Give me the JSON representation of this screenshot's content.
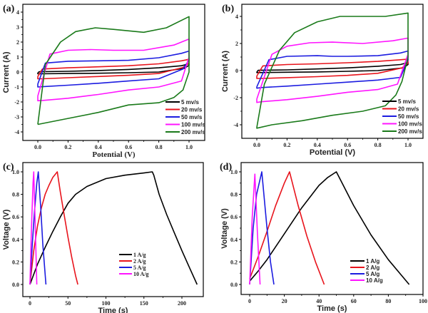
{
  "chart_data": [
    {
      "panel": "(a)",
      "type": "line",
      "title": "",
      "xlabel": "Potential (V)",
      "ylabel": "Current (A)",
      "xlim": [
        -0.1,
        1.1
      ],
      "ylim": [
        -4.6,
        4.3
      ],
      "xticks": [
        0.0,
        0.2,
        0.4,
        0.6,
        0.8,
        1.0
      ],
      "xtick_labels": [
        "0.0",
        "0.2",
        "0.4",
        "0.6",
        "0.8",
        "1.0"
      ],
      "yticks": [
        -4,
        -3,
        -2,
        -1,
        0,
        1,
        2,
        3,
        4
      ],
      "ytick_labels": [
        "-4",
        "-3",
        "-2",
        "-1",
        "0",
        "1",
        "2",
        "3",
        "4"
      ],
      "grid": false,
      "legend_position": "bottom-right",
      "series": [
        {
          "name": "5 mv/s",
          "color": "#000000",
          "x": [
            0.0,
            0.01,
            0.2,
            0.4,
            0.6,
            0.8,
            0.95,
            1.0,
            1.0,
            0.97,
            0.8,
            0.6,
            0.4,
            0.2,
            0.02,
            0.0,
            0.0
          ],
          "y": [
            -0.05,
            0.02,
            0.05,
            0.1,
            0.17,
            0.28,
            0.42,
            0.55,
            0.45,
            0.25,
            0.0,
            -0.05,
            -0.08,
            -0.1,
            -0.12,
            -0.12,
            -0.05
          ]
        },
        {
          "name": "20 mv/s",
          "color": "#e8141c",
          "x": [
            0.0,
            0.03,
            0.2,
            0.4,
            0.6,
            0.8,
            0.95,
            1.0,
            1.0,
            0.96,
            0.8,
            0.6,
            0.4,
            0.2,
            0.03,
            0.0,
            0.0
          ],
          "y": [
            -0.3,
            0.2,
            0.28,
            0.35,
            0.42,
            0.55,
            0.75,
            0.85,
            0.6,
            0.3,
            -0.1,
            -0.22,
            -0.3,
            -0.38,
            -0.45,
            -0.45,
            -0.3
          ]
        },
        {
          "name": "50 mv/s",
          "color": "#1c1ce0",
          "x": [
            0.0,
            0.05,
            0.2,
            0.4,
            0.6,
            0.8,
            0.95,
            1.0,
            1.0,
            0.96,
            0.8,
            0.6,
            0.4,
            0.2,
            0.03,
            0.0,
            0.0
          ],
          "y": [
            -0.8,
            0.6,
            0.72,
            0.75,
            0.78,
            0.95,
            1.25,
            1.4,
            0.8,
            0.2,
            -0.45,
            -0.6,
            -0.75,
            -0.88,
            -0.98,
            -1.0,
            -0.8
          ]
        },
        {
          "name": "100 mv/s",
          "color": "#ff14ff",
          "x": [
            0.0,
            0.08,
            0.2,
            0.35,
            0.5,
            0.7,
            0.9,
            1.0,
            1.0,
            0.95,
            0.8,
            0.6,
            0.4,
            0.2,
            0.03,
            0.0,
            0.0
          ],
          "y": [
            -1.6,
            1.2,
            1.45,
            1.5,
            1.45,
            1.45,
            1.8,
            2.2,
            1.0,
            -0.6,
            -1.0,
            -1.2,
            -1.5,
            -1.75,
            -1.9,
            -1.92,
            -1.6
          ]
        },
        {
          "name": "200 mv/s",
          "color": "#1a7a1a",
          "x": [
            0.0,
            0.05,
            0.15,
            0.25,
            0.38,
            0.5,
            0.7,
            0.85,
            1.0,
            1.0,
            0.96,
            0.9,
            0.8,
            0.6,
            0.4,
            0.2,
            0.0,
            0.0
          ],
          "y": [
            -3.5,
            0.5,
            2.0,
            2.7,
            2.95,
            2.85,
            2.65,
            2.95,
            3.7,
            0.0,
            -1.2,
            -1.7,
            -2.05,
            -2.2,
            -2.7,
            -3.1,
            -3.5,
            -3.5
          ]
        }
      ]
    },
    {
      "panel": "(b)",
      "type": "line",
      "title": "",
      "xlabel": "Potential (V)",
      "ylabel": "Current (A)",
      "xlim": [
        -0.1,
        1.1
      ],
      "ylim": [
        -5,
        5.2
      ],
      "xticks": [
        0.0,
        0.2,
        0.4,
        0.6,
        0.8,
        1.0
      ],
      "xtick_labels": [
        "0.0",
        "0.2",
        "0.4",
        "0.6",
        "0.8",
        "1.0"
      ],
      "yticks": [
        -4,
        -2,
        0,
        2,
        4
      ],
      "ytick_labels": [
        "-4",
        "-2",
        "0",
        "2",
        "4"
      ],
      "grid": false,
      "legend_position": "bottom-right",
      "series": [
        {
          "name": "5 mv/s",
          "color": "#000000",
          "x": [
            0.0,
            0.01,
            0.2,
            0.4,
            0.6,
            0.8,
            0.95,
            1.0,
            1.0,
            0.97,
            0.8,
            0.6,
            0.4,
            0.2,
            0.02,
            0.0,
            0.0
          ],
          "y": [
            -0.1,
            0.02,
            0.05,
            0.12,
            0.2,
            0.32,
            0.45,
            0.6,
            0.45,
            0.2,
            0.0,
            -0.05,
            -0.1,
            -0.12,
            -0.15,
            -0.15,
            -0.1
          ]
        },
        {
          "name": "20 mv/s",
          "color": "#e8141c",
          "x": [
            0.0,
            0.04,
            0.2,
            0.4,
            0.6,
            0.8,
            0.95,
            1.0,
            1.0,
            0.96,
            0.8,
            0.6,
            0.4,
            0.2,
            0.03,
            0.0,
            0.0
          ],
          "y": [
            -0.4,
            0.35,
            0.45,
            0.5,
            0.58,
            0.68,
            0.8,
            0.85,
            0.55,
            0.2,
            -0.2,
            -0.35,
            -0.45,
            -0.52,
            -0.58,
            -0.58,
            -0.4
          ]
        },
        {
          "name": "50 mv/s",
          "color": "#1c1ce0",
          "x": [
            0.0,
            0.08,
            0.2,
            0.4,
            0.5,
            0.6,
            0.8,
            0.95,
            1.0,
            1.0,
            0.95,
            0.8,
            0.6,
            0.4,
            0.2,
            0.03,
            0.0,
            0.0
          ],
          "y": [
            -1.2,
            0.8,
            1.05,
            1.1,
            1.05,
            1.05,
            1.1,
            1.3,
            1.45,
            0.8,
            -0.5,
            -0.7,
            -0.85,
            -1.0,
            -1.15,
            -1.25,
            -1.3,
            -1.2
          ]
        },
        {
          "name": "100 mv/s",
          "color": "#ff14ff",
          "x": [
            0.0,
            0.1,
            0.2,
            0.35,
            0.5,
            0.7,
            0.9,
            1.0,
            1.0,
            0.93,
            0.8,
            0.6,
            0.4,
            0.2,
            0.03,
            0.0,
            0.0
          ],
          "y": [
            -2.1,
            1.2,
            1.8,
            2.05,
            2.1,
            2.0,
            2.2,
            2.4,
            1.2,
            -1.0,
            -1.4,
            -1.6,
            -1.9,
            -2.15,
            -2.3,
            -2.35,
            -2.1
          ]
        },
        {
          "name": "200 mv/s",
          "color": "#1a7a1a",
          "x": [
            0.0,
            0.05,
            0.15,
            0.25,
            0.4,
            0.55,
            0.7,
            0.85,
            1.0,
            1.0,
            0.96,
            0.92,
            0.85,
            0.7,
            0.5,
            0.3,
            0.1,
            0.0,
            0.0
          ],
          "y": [
            -4.2,
            -1.0,
            1.5,
            2.8,
            3.6,
            4.0,
            4.0,
            4.0,
            4.25,
            1.0,
            -0.8,
            -1.8,
            -2.6,
            -3.0,
            -3.3,
            -3.7,
            -4.0,
            -4.25,
            -4.2
          ]
        }
      ]
    },
    {
      "panel": "(c)",
      "type": "line",
      "title": "",
      "xlabel": "Time (s)",
      "ylabel": "Voltage (V)",
      "xlim": [
        -10,
        228
      ],
      "ylim": [
        -0.1,
        1.08
      ],
      "xticks": [
        0,
        50,
        100,
        150,
        200
      ],
      "xtick_labels": [
        "0",
        "50",
        "100",
        "150",
        "200"
      ],
      "yticks": [
        0.0,
        0.2,
        0.4,
        0.6,
        0.8,
        1.0
      ],
      "ytick_labels": [
        "0.0",
        "0.2",
        "0.4",
        "0.6",
        "0.8",
        "1.0"
      ],
      "grid": false,
      "legend_position": "center-right",
      "series": [
        {
          "name": "1 A/g",
          "color": "#000000",
          "x": [
            0,
            10,
            20,
            30,
            40,
            50,
            60,
            75,
            100,
            125,
            150,
            161,
            163,
            170,
            180,
            190,
            200,
            210,
            220
          ],
          "y": [
            0.0,
            0.18,
            0.33,
            0.47,
            0.6,
            0.72,
            0.8,
            0.87,
            0.94,
            0.97,
            0.99,
            1.0,
            0.97,
            0.8,
            0.62,
            0.46,
            0.3,
            0.15,
            0.0
          ]
        },
        {
          "name": "2 A/g",
          "color": "#e8141c",
          "x": [
            0,
            5,
            10,
            15,
            20,
            25,
            30,
            36,
            40,
            45,
            50,
            55,
            60,
            63
          ],
          "y": [
            0.0,
            0.3,
            0.52,
            0.68,
            0.8,
            0.88,
            0.95,
            1.0,
            0.82,
            0.62,
            0.42,
            0.24,
            0.08,
            0.0
          ]
        },
        {
          "name": "5 A/g",
          "color": "#1c1ce0",
          "x": [
            0,
            3,
            6,
            9,
            11,
            14,
            17,
            21
          ],
          "y": [
            0.0,
            0.35,
            0.65,
            0.9,
            1.0,
            0.7,
            0.35,
            0.0
          ]
        },
        {
          "name": "10 A/g",
          "color": "#ff14ff",
          "x": [
            0,
            2,
            4,
            5,
            7,
            9
          ],
          "y": [
            0.0,
            0.5,
            0.9,
            1.0,
            0.5,
            0.0
          ]
        }
      ]
    },
    {
      "panel": "(d)",
      "type": "line",
      "title": "",
      "xlabel": "Time (s)",
      "ylabel": "Voltage (V)",
      "xlim": [
        -5,
        100
      ],
      "ylim": [
        -0.1,
        1.08
      ],
      "xticks": [
        0,
        20,
        40,
        60,
        80,
        100
      ],
      "xtick_labels": [
        "0",
        "20",
        "40",
        "60",
        "80",
        "100"
      ],
      "yticks": [
        0.0,
        0.2,
        0.4,
        0.6,
        0.8,
        1.0
      ],
      "ytick_labels": [
        "0.0",
        "0.2",
        "0.4",
        "0.6",
        "0.8",
        "1.0"
      ],
      "grid": false,
      "legend_position": "bottom-right",
      "series": [
        {
          "name": "1 A/g",
          "color": "#000000",
          "x": [
            0,
            5,
            10,
            20,
            30,
            40,
            45,
            50,
            52,
            60,
            70,
            80,
            92
          ],
          "y": [
            0.03,
            0.12,
            0.22,
            0.45,
            0.68,
            0.88,
            0.95,
            1.0,
            0.94,
            0.7,
            0.44,
            0.22,
            0.0
          ]
        },
        {
          "name": "2 A/g",
          "color": "#e8141c",
          "x": [
            0,
            5,
            10,
            15,
            20,
            23,
            28,
            33,
            38,
            43
          ],
          "y": [
            0.05,
            0.25,
            0.47,
            0.7,
            0.9,
            1.0,
            0.7,
            0.43,
            0.2,
            0.0
          ]
        },
        {
          "name": "5 A/g",
          "color": "#1c1ce0",
          "x": [
            0,
            2,
            4,
            7,
            10,
            12,
            14
          ],
          "y": [
            0.0,
            0.5,
            0.8,
            1.0,
            0.5,
            0.2,
            0.0
          ]
        },
        {
          "name": "10 A/g",
          "color": "#ff14ff",
          "x": [
            0,
            1.5,
            3,
            4.5,
            6
          ],
          "y": [
            0.0,
            0.6,
            0.98,
            0.45,
            0.0
          ]
        }
      ]
    }
  ]
}
